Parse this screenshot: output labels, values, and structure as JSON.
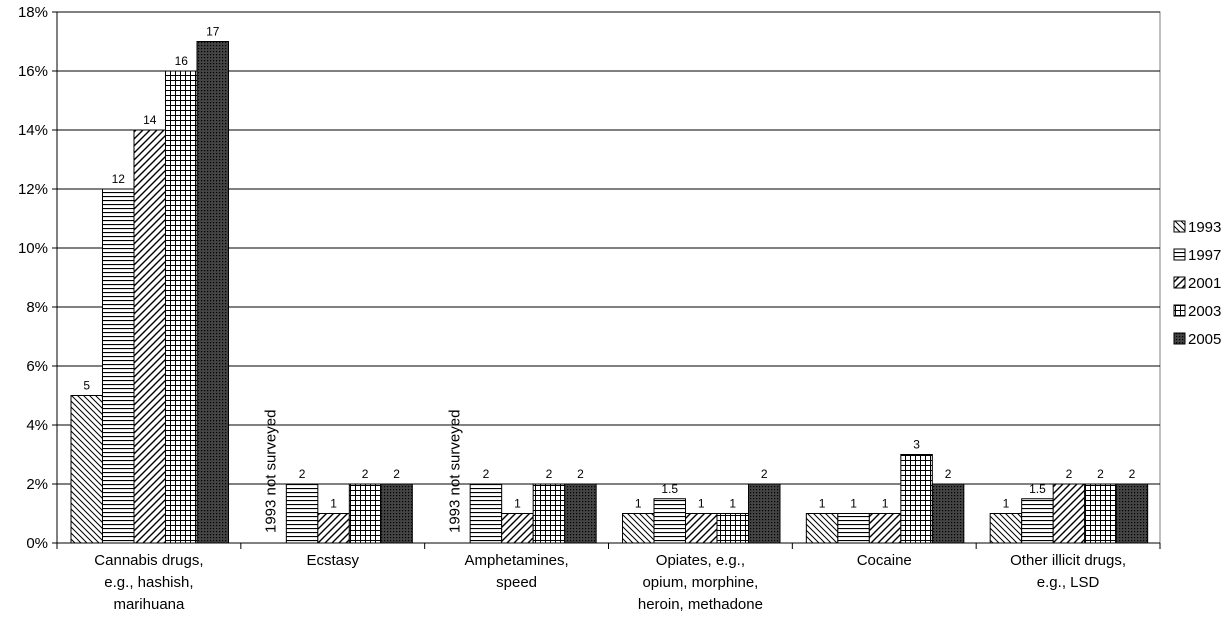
{
  "chart_data": {
    "type": "bar",
    "categories": [
      [
        "Cannabis drugs,",
        "e.g., hashish,",
        "marihuana"
      ],
      [
        "Ecstasy"
      ],
      [
        "Amphetamines,",
        "speed"
      ],
      [
        "Opiates, e.g.,",
        "opium, morphine,",
        "heroin, methadone"
      ],
      [
        "Cocaine"
      ],
      [
        "Other illicit drugs,",
        "e.g., LSD"
      ]
    ],
    "series": [
      {
        "name": "1993",
        "pattern": "diag-back",
        "values": [
          5,
          null,
          null,
          1,
          1,
          1
        ]
      },
      {
        "name": "1997",
        "pattern": "horiz",
        "values": [
          12,
          2,
          2,
          1.5,
          1,
          1.5
        ]
      },
      {
        "name": "2001",
        "pattern": "diag-fwd",
        "values": [
          14,
          1,
          1,
          1,
          1,
          2
        ]
      },
      {
        "name": "2003",
        "pattern": "grid",
        "values": [
          16,
          2,
          2,
          1,
          3,
          2
        ]
      },
      {
        "name": "2005",
        "pattern": "dense",
        "values": [
          17,
          2,
          2,
          2,
          2,
          2
        ]
      }
    ],
    "data_labels": [
      [
        "5",
        "",
        "",
        "1",
        "1",
        "1"
      ],
      [
        "12",
        "2",
        "2",
        "1.5",
        "1",
        "1.5"
      ],
      [
        "14",
        "1",
        "1",
        "1",
        "1",
        "2"
      ],
      [
        "16",
        "2",
        "2",
        "1",
        "3",
        "2"
      ],
      [
        "17",
        "2",
        "2",
        "2",
        "2",
        "2"
      ]
    ],
    "annotations": [
      {
        "category_index": 1,
        "series_index": 0,
        "text": "1993 not surveyed"
      },
      {
        "category_index": 2,
        "series_index": 0,
        "text": "1993 not surveyed"
      }
    ],
    "yticks": [
      "0%",
      "2%",
      "4%",
      "6%",
      "8%",
      "10%",
      "12%",
      "14%",
      "16%",
      "18%"
    ],
    "ylim": [
      0,
      18
    ],
    "ystep": 2,
    "grid": true,
    "legend_position": "right"
  }
}
